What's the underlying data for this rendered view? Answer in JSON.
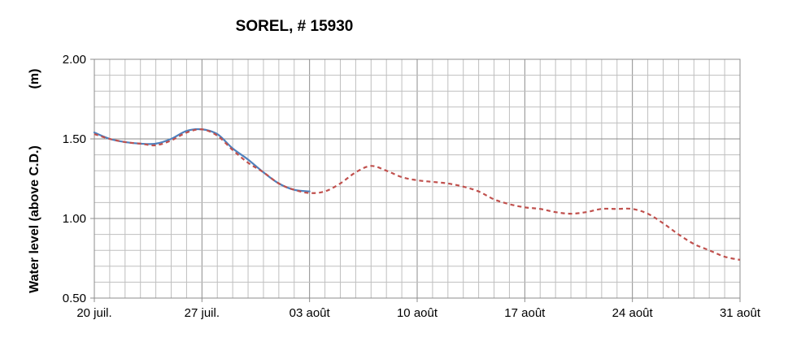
{
  "chart_data": {
    "type": "line",
    "title": "SOREL, # 15930",
    "ylabel": "Water level (above C.D.)",
    "ylabel_unit": "(m)",
    "xlabel": "",
    "x_ticks": [
      "20 juil.",
      "27 juil.",
      "03 août",
      "10 août",
      "17 août",
      "24 août",
      "31 août"
    ],
    "y_ticks": [
      "0.50",
      "1.00",
      "1.50",
      "2.00"
    ],
    "xlim_days": [
      0,
      42
    ],
    "ylim": [
      0.5,
      2.0
    ],
    "grid": true,
    "minor_x_per_major": 7,
    "minor_y_per_major": 5,
    "colors": {
      "observed": "#4f81bd",
      "predicted": "#c0504d",
      "grid": "#bfbfbf",
      "grid_major": "#8c8c8c"
    },
    "series": [
      {
        "style": "solid",
        "color": "#4f81bd",
        "points": [
          [
            0,
            1.54
          ],
          [
            1,
            1.5
          ],
          [
            2,
            1.48
          ],
          [
            3,
            1.47
          ],
          [
            4,
            1.47
          ],
          [
            5,
            1.5
          ],
          [
            6,
            1.55
          ],
          [
            7,
            1.56
          ],
          [
            8,
            1.53
          ],
          [
            9,
            1.44
          ],
          [
            10,
            1.37
          ],
          [
            11,
            1.29
          ],
          [
            12,
            1.22
          ],
          [
            13,
            1.18
          ],
          [
            14,
            1.17
          ]
        ]
      },
      {
        "style": "dashed",
        "color": "#c0504d",
        "points": [
          [
            0,
            1.53
          ],
          [
            1,
            1.5
          ],
          [
            2,
            1.48
          ],
          [
            3,
            1.47
          ],
          [
            4,
            1.46
          ],
          [
            5,
            1.49
          ],
          [
            6,
            1.54
          ],
          [
            7,
            1.56
          ],
          [
            8,
            1.52
          ],
          [
            9,
            1.43
          ],
          [
            10,
            1.35
          ],
          [
            11,
            1.29
          ],
          [
            12,
            1.22
          ],
          [
            13,
            1.18
          ],
          [
            14,
            1.16
          ],
          [
            15,
            1.17
          ],
          [
            16,
            1.22
          ],
          [
            17,
            1.29
          ],
          [
            18,
            1.33
          ],
          [
            19,
            1.3
          ],
          [
            20,
            1.26
          ],
          [
            21,
            1.24
          ],
          [
            22,
            1.23
          ],
          [
            23,
            1.22
          ],
          [
            24,
            1.2
          ],
          [
            25,
            1.17
          ],
          [
            26,
            1.12
          ],
          [
            27,
            1.09
          ],
          [
            28,
            1.07
          ],
          [
            29,
            1.06
          ],
          [
            30,
            1.04
          ],
          [
            31,
            1.03
          ],
          [
            32,
            1.04
          ],
          [
            33,
            1.06
          ],
          [
            34,
            1.06
          ],
          [
            35,
            1.06
          ],
          [
            36,
            1.03
          ],
          [
            37,
            0.97
          ],
          [
            38,
            0.9
          ],
          [
            39,
            0.84
          ],
          [
            40,
            0.8
          ],
          [
            41,
            0.76
          ],
          [
            42,
            0.74
          ]
        ]
      }
    ]
  }
}
